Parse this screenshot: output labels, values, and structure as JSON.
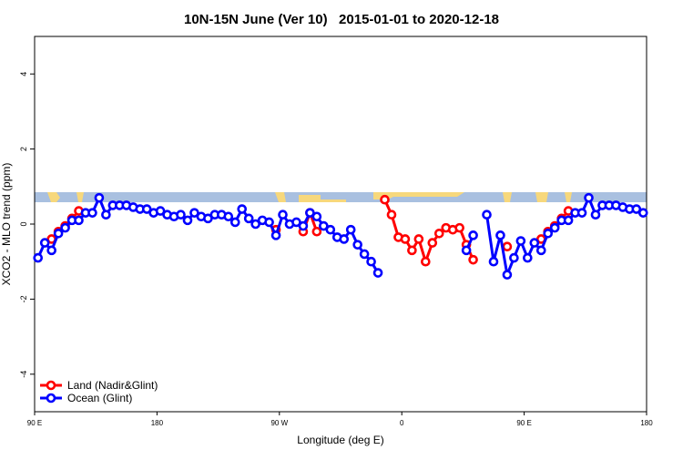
{
  "chart_data": {
    "type": "line",
    "title": "10N-15N June (Ver 10)   2015-01-01 to 2020-12-18",
    "x_label": "Longitude (deg E)",
    "y_label": "XCO2 - MLO trend (ppm)",
    "x": [
      92.5,
      97.5,
      102.5,
      107.5,
      112.5,
      117.5,
      122.5,
      127.5,
      132.5,
      137.5,
      142.5,
      147.5,
      152.5,
      157.5,
      162.5,
      167.5,
      172.5,
      177.5,
      182.5,
      187.5,
      192.5,
      197.5,
      202.5,
      207.5,
      212.5,
      217.5,
      222.5,
      227.5,
      232.5,
      237.5,
      242.5,
      247.5,
      252.5,
      257.5,
      262.5,
      267.5,
      272.5,
      277.5,
      282.5,
      287.5,
      292.5,
      297.5,
      302.5,
      307.5,
      312.5,
      317.5,
      322.5,
      327.5,
      332.5,
      337.5,
      342.5,
      347.5,
      352.5,
      357.5,
      362.5,
      367.5,
      372.5,
      377.5,
      382.5,
      387.5,
      392.5,
      397.5,
      402.5,
      407.5,
      412.5,
      417.5,
      422.5,
      427.5,
      432.5,
      437.5,
      442.5,
      447.5,
      452.5,
      457.5,
      462.5,
      467.5,
      472.5,
      477.5,
      482.5,
      487.5,
      492.5,
      497.5,
      502.5,
      507.5,
      512.5,
      517.5,
      522.5,
      527.5,
      532.5,
      537.5
    ],
    "series": [
      {
        "name": "Land (Nadir&Glint)",
        "color": "#ff0000",
        "values": [
          null,
          null,
          -0.4,
          -0.2,
          -0.05,
          0.15,
          0.35,
          null,
          null,
          null,
          null,
          null,
          null,
          null,
          null,
          null,
          null,
          null,
          null,
          null,
          null,
          null,
          null,
          null,
          null,
          null,
          null,
          null,
          null,
          null,
          null,
          null,
          null,
          null,
          null,
          -0.15,
          null,
          null,
          null,
          -0.2,
          0.3,
          -0.2,
          null,
          null,
          null,
          null,
          null,
          null,
          null,
          null,
          null,
          0.65,
          0.25,
          -0.35,
          -0.4,
          -0.7,
          -0.4,
          -1.0,
          -0.5,
          -0.25,
          -0.1,
          -0.15,
          -0.1,
          -0.55,
          -0.95,
          null,
          null,
          null,
          null,
          -0.6,
          null,
          null,
          null,
          null,
          -0.4,
          -0.2,
          -0.05,
          0.15,
          0.35,
          null,
          null,
          null,
          null,
          null,
          null,
          null,
          null,
          null,
          null,
          null
        ]
      },
      {
        "name": "Ocean (Glint)",
        "color": "#0000ff",
        "values": [
          -0.9,
          -0.5,
          -0.7,
          -0.25,
          -0.1,
          0.1,
          0.1,
          0.3,
          0.3,
          0.7,
          0.25,
          0.5,
          0.5,
          0.5,
          0.45,
          0.4,
          0.4,
          0.3,
          0.35,
          0.25,
          0.2,
          0.25,
          0.1,
          0.3,
          0.2,
          0.15,
          0.25,
          0.25,
          0.2,
          0.05,
          0.4,
          0.15,
          0.0,
          0.1,
          0.05,
          -0.3,
          0.25,
          0.0,
          0.05,
          -0.05,
          0.3,
          0.2,
          -0.05,
          -0.15,
          -0.35,
          -0.4,
          -0.15,
          -0.55,
          -0.8,
          -1.0,
          -1.3,
          null,
          null,
          null,
          null,
          null,
          null,
          null,
          null,
          null,
          null,
          null,
          null,
          -0.7,
          -0.3,
          null,
          0.25,
          -1.0,
          -0.3,
          -1.35,
          -0.9,
          -0.45,
          -0.9,
          -0.5,
          -0.7,
          -0.25,
          -0.1,
          0.1,
          0.1,
          0.3,
          0.3,
          0.7,
          0.25,
          0.5,
          0.5,
          0.5,
          0.45,
          0.4,
          0.4,
          0.3
        ]
      }
    ],
    "xlim": [
      90,
      540
    ],
    "xticks": [
      {
        "value": 90,
        "label": "90 E"
      },
      180,
      {
        "value": 270,
        "label": "90 W"
      },
      {
        "value": 360,
        "label": "0"
      },
      {
        "value": 450,
        "label": "90 E"
      },
      {
        "value": 540,
        "label": "180"
      }
    ],
    "ylim": [
      -5,
      5
    ],
    "yticks": [
      -4,
      -2,
      0,
      2,
      4
    ],
    "legend": "lower left"
  }
}
